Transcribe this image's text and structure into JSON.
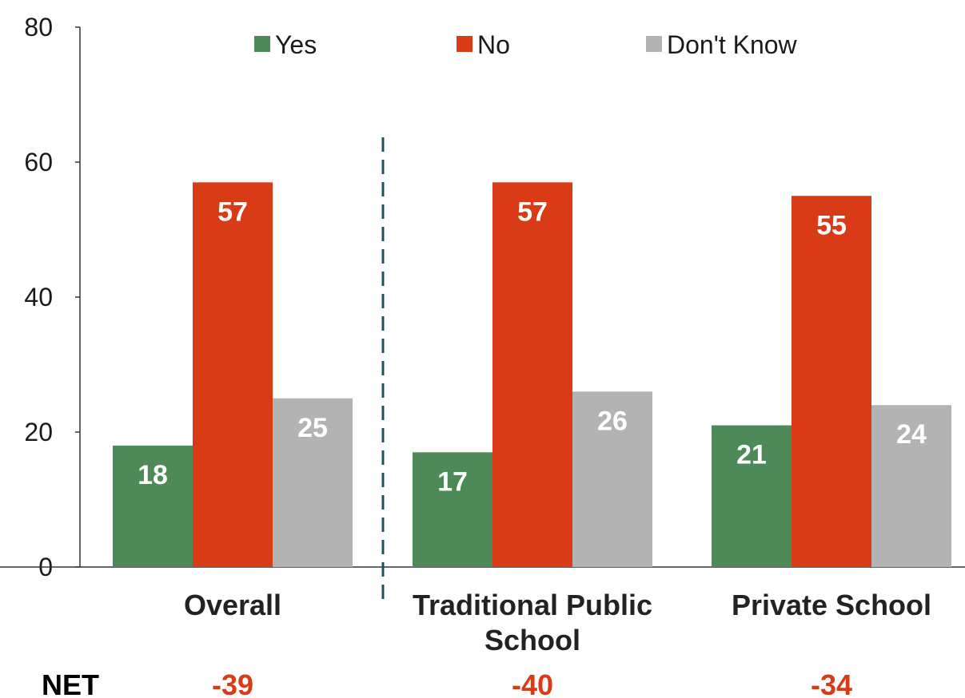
{
  "chart_data": {
    "type": "bar",
    "categories": [
      "Overall",
      "Traditional Public School",
      "Private School"
    ],
    "category_lines": [
      [
        "Overall"
      ],
      [
        "Traditional Public",
        "School"
      ],
      [
        "Private School"
      ]
    ],
    "series": [
      {
        "name": "Yes",
        "color": "#4e8a57",
        "values": [
          18,
          17,
          21
        ]
      },
      {
        "name": "No",
        "color": "#d83b16",
        "values": [
          57,
          57,
          55
        ]
      },
      {
        "name": "Don't Know",
        "color": "#b3b3b3",
        "values": [
          25,
          26,
          24
        ]
      }
    ],
    "ylim": [
      0,
      80
    ],
    "yticks": [
      0,
      20,
      40,
      60,
      80
    ],
    "legend_position": "top",
    "grid": false,
    "separator": "dashed line between Overall and Traditional Public School",
    "net": {
      "label": "NET",
      "values": [
        "-39",
        "-40",
        "-34"
      ],
      "color": "#d83b16"
    }
  }
}
